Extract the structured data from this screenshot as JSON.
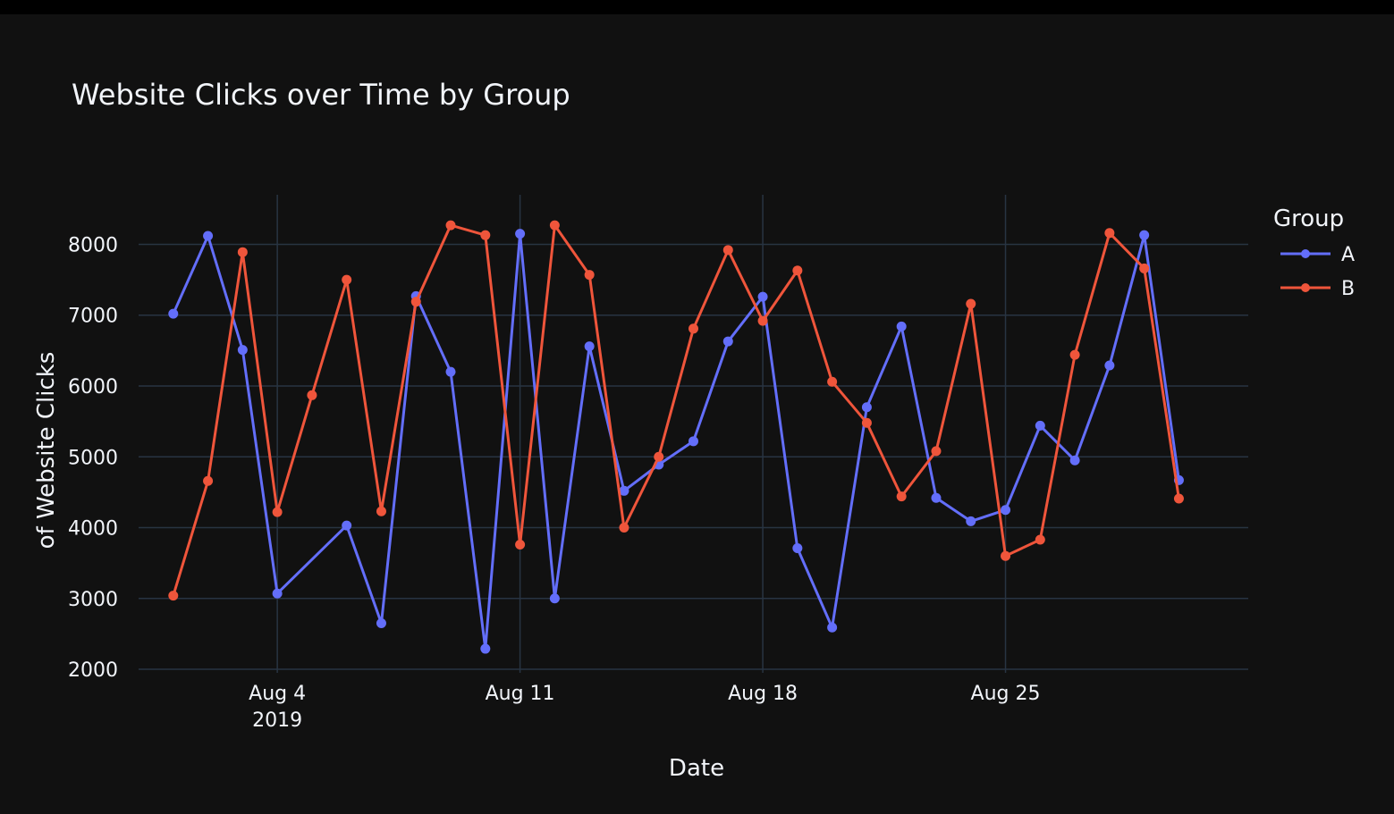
{
  "colors": {
    "background": "#111111",
    "grid": "#283442",
    "text": "#f2f5fa",
    "series_A": "#636efa",
    "series_B": "#ef553b"
  },
  "chart_data": {
    "type": "line",
    "title": "Website Clicks over Time by Group",
    "xlabel": "Date",
    "ylabel": "of Website Clicks",
    "legend_title": "Group",
    "legend_position": "right",
    "grid": true,
    "x_tick_dates": [
      "2019-08-04",
      "2019-08-11",
      "2019-08-18",
      "2019-08-25"
    ],
    "x_tick_labels": [
      "Aug 4",
      "Aug 11",
      "Aug 18",
      "Aug 25"
    ],
    "x_tick_sublabel": "2019",
    "xlim": [
      "2019-07-31",
      "2019-09-01"
    ],
    "y_ticks": [
      2000,
      3000,
      4000,
      5000,
      6000,
      7000,
      8000
    ],
    "ylim": [
      1950,
      8700
    ],
    "x": [
      "2019-08-01",
      "2019-08-02",
      "2019-08-03",
      "2019-08-04",
      "2019-08-05",
      "2019-08-06",
      "2019-08-07",
      "2019-08-08",
      "2019-08-09",
      "2019-08-10",
      "2019-08-11",
      "2019-08-12",
      "2019-08-13",
      "2019-08-14",
      "2019-08-15",
      "2019-08-16",
      "2019-08-17",
      "2019-08-18",
      "2019-08-19",
      "2019-08-20",
      "2019-08-21",
      "2019-08-22",
      "2019-08-23",
      "2019-08-24",
      "2019-08-25",
      "2019-08-26",
      "2019-08-27",
      "2019-08-28",
      "2019-08-29",
      "2019-08-30"
    ],
    "series": [
      {
        "name": "A",
        "x": [
          "2019-08-01",
          "2019-08-02",
          "2019-08-03",
          "2019-08-04",
          "2019-08-06",
          "2019-08-07",
          "2019-08-08",
          "2019-08-09",
          "2019-08-10",
          "2019-08-11",
          "2019-08-12",
          "2019-08-13",
          "2019-08-14",
          "2019-08-15",
          "2019-08-16",
          "2019-08-17",
          "2019-08-18",
          "2019-08-19",
          "2019-08-20",
          "2019-08-21",
          "2019-08-22",
          "2019-08-23",
          "2019-08-24",
          "2019-08-25",
          "2019-08-26",
          "2019-08-27",
          "2019-08-28",
          "2019-08-29",
          "2019-08-30"
        ],
        "values": [
          7020,
          8120,
          6510,
          3070,
          4030,
          2650,
          7270,
          6200,
          2290,
          8150,
          3000,
          6560,
          4520,
          4890,
          5220,
          6630,
          7260,
          3710,
          2590,
          5700,
          6840,
          4420,
          4090,
          4250,
          5440,
          4950,
          6290,
          8130,
          4670
        ]
      },
      {
        "name": "B",
        "x": [
          "2019-08-01",
          "2019-08-02",
          "2019-08-03",
          "2019-08-04",
          "2019-08-05",
          "2019-08-06",
          "2019-08-07",
          "2019-08-08",
          "2019-08-09",
          "2019-08-10",
          "2019-08-11",
          "2019-08-12",
          "2019-08-13",
          "2019-08-14",
          "2019-08-15",
          "2019-08-16",
          "2019-08-17",
          "2019-08-18",
          "2019-08-19",
          "2019-08-20",
          "2019-08-21",
          "2019-08-22",
          "2019-08-23",
          "2019-08-24",
          "2019-08-25",
          "2019-08-26",
          "2019-08-27",
          "2019-08-28",
          "2019-08-29",
          "2019-08-30"
        ],
        "values": [
          3040,
          4660,
          7890,
          4220,
          5870,
          7500,
          4230,
          7190,
          8270,
          8130,
          3760,
          8270,
          7570,
          4000,
          5000,
          6810,
          7920,
          6920,
          7630,
          6060,
          5480,
          4440,
          5080,
          7160,
          3600,
          3830,
          6440,
          8160,
          7660,
          4410
        ]
      }
    ]
  }
}
